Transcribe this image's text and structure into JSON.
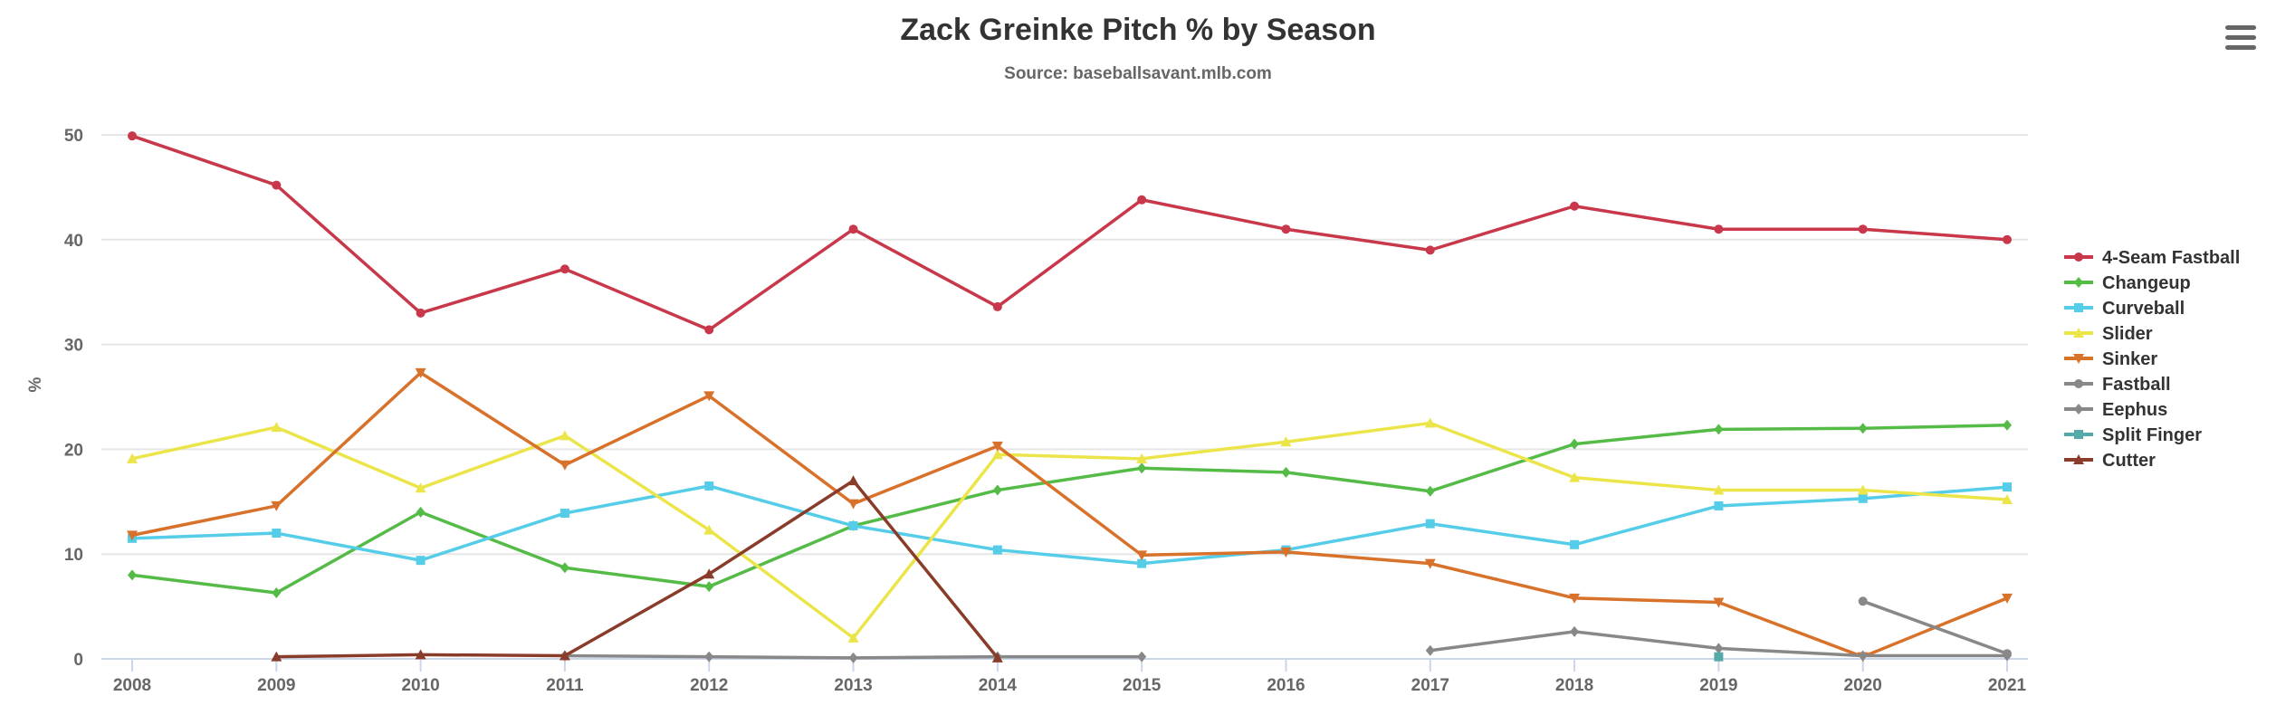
{
  "chart_data": {
    "type": "line",
    "title": "Zack Greinke Pitch % by Season",
    "subtitle": "Source: baseballsavant.mlb.com",
    "xlabel": "",
    "ylabel": "%",
    "x": [
      "2008",
      "2009",
      "2010",
      "2011",
      "2012",
      "2013",
      "2014",
      "2015",
      "2016",
      "2017",
      "2018",
      "2019",
      "2020",
      "2021"
    ],
    "yticks": [
      "0",
      "10",
      "20",
      "30",
      "40",
      "50"
    ],
    "ylim": [
      0,
      50
    ],
    "grid": true,
    "legend": "right",
    "series": [
      {
        "name": "4-Seam Fastball",
        "color": "#c8374a",
        "marker": "circle",
        "values": [
          49.9,
          45.2,
          33.0,
          37.2,
          31.4,
          41.0,
          33.6,
          43.8,
          41.0,
          39.0,
          43.2,
          41.0,
          41.0,
          40.0
        ]
      },
      {
        "name": "Changeup",
        "color": "#55bb47",
        "marker": "diamond",
        "values": [
          8.0,
          6.3,
          14.0,
          8.7,
          6.9,
          12.7,
          16.1,
          18.2,
          17.8,
          16.0,
          20.5,
          21.9,
          22.0,
          22.3
        ]
      },
      {
        "name": "Curveball",
        "color": "#55cde8",
        "marker": "square",
        "values": [
          11.5,
          12.0,
          9.4,
          13.9,
          16.5,
          12.7,
          10.4,
          9.1,
          10.4,
          12.9,
          10.9,
          14.6,
          15.3,
          16.4
        ]
      },
      {
        "name": "Slider",
        "color": "#ebe54a",
        "marker": "triangle",
        "values": [
          19.1,
          22.1,
          16.3,
          21.3,
          12.3,
          2.0,
          19.5,
          19.1,
          20.7,
          22.5,
          17.3,
          16.1,
          16.1,
          15.2
        ]
      },
      {
        "name": "Sinker",
        "color": "#d8712a",
        "marker": "triangle-down",
        "values": [
          11.8,
          14.6,
          27.3,
          18.5,
          25.1,
          14.8,
          20.3,
          9.9,
          10.2,
          9.1,
          5.8,
          5.4,
          0.2,
          5.8
        ]
      },
      {
        "name": "Fastball",
        "color": "#888888",
        "marker": "circle",
        "values": [
          null,
          null,
          null,
          null,
          null,
          null,
          null,
          null,
          null,
          null,
          null,
          null,
          5.5,
          0.5
        ]
      },
      {
        "name": "Eephus",
        "color": "#888888",
        "marker": "diamond",
        "values": [
          null,
          null,
          null,
          0.3,
          0.2,
          0.1,
          0.2,
          0.2,
          null,
          0.8,
          2.6,
          1.0,
          0.3,
          0.3
        ]
      },
      {
        "name": "Split Finger",
        "color": "#55a9a8",
        "marker": "square",
        "values": [
          null,
          null,
          null,
          null,
          null,
          null,
          null,
          null,
          null,
          null,
          null,
          0.2,
          null,
          null
        ]
      },
      {
        "name": "Cutter",
        "color": "#8a3c2a",
        "marker": "triangle",
        "values": [
          null,
          0.2,
          0.4,
          0.3,
          8.1,
          17.0,
          0.1,
          null,
          null,
          null,
          null,
          null,
          null,
          null
        ]
      }
    ]
  },
  "menu": {
    "icon": "hamburger-menu-icon"
  }
}
